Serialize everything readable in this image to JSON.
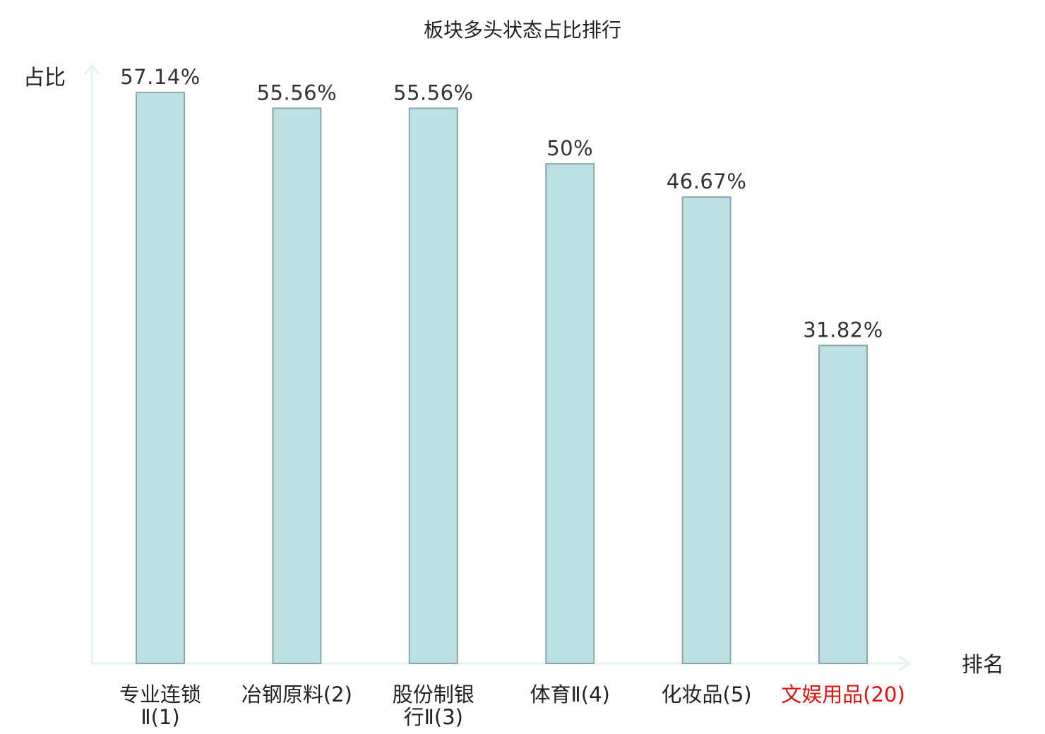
{
  "chart_data": {
    "type": "bar",
    "title": "板块多头状态占比排行",
    "ylabel": "占比",
    "xlabel": "排名",
    "ylim": [
      0,
      60
    ],
    "grid": false,
    "legend": "none",
    "categories": [
      {
        "lines": [
          "专业连锁",
          "Ⅱ(1)"
        ],
        "name": "专业连锁Ⅱ",
        "rank": "(1)"
      },
      {
        "lines": [
          "冶钢原料(2)"
        ],
        "name": "冶钢原料",
        "rank": "(2)"
      },
      {
        "lines": [
          "股份制银",
          "行Ⅱ(3)"
        ],
        "name": "股份制银行Ⅱ",
        "rank": "(3)"
      },
      {
        "lines": [
          "体育Ⅱ(4)"
        ],
        "name": "体育Ⅱ",
        "rank": "(4)"
      },
      {
        "lines": [
          "化妆品(5)"
        ],
        "name": "化妆品",
        "rank": "(5)"
      },
      {
        "lines": [
          "文娱用品(20)"
        ],
        "name": "文娱用品",
        "rank": "(20)"
      }
    ],
    "values": [
      57.14,
      55.56,
      55.56,
      50,
      46.67,
      31.82
    ],
    "value_labels": [
      "57.14%",
      "55.56%",
      "55.56%",
      "50%",
      "46.67%",
      "31.82%"
    ],
    "highlight_index": 5,
    "colors": {
      "bar_fill": "#bde1e3",
      "bar_stroke": "#8aa8aa",
      "axis": "#e3f3f1",
      "highlight": "#e01010"
    }
  }
}
